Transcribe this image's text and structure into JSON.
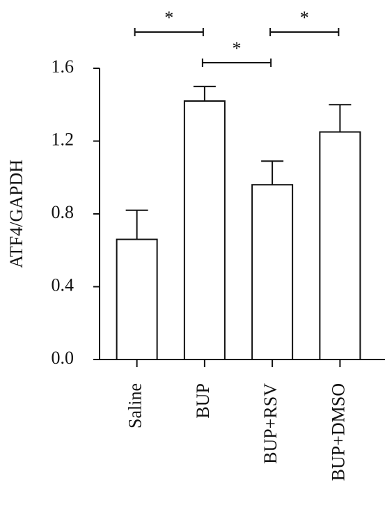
{
  "chart_data": {
    "type": "bar",
    "y_label": "ATF4/GAPDH",
    "categories": [
      "Saline",
      "BUP",
      "BUP+RSV",
      "BUP+DMSO"
    ],
    "values": [
      0.66,
      1.42,
      0.96,
      1.25
    ],
    "errors": [
      0.16,
      0.08,
      0.13,
      0.15
    ],
    "color": "#ffffff",
    "ylim": [
      0,
      1.6
    ],
    "yticks": [
      {
        "value": 0,
        "label": "0.0"
      },
      {
        "value": 0.4,
        "label": "0.4"
      },
      {
        "value": 0.8,
        "label": "0.8"
      },
      {
        "value": 1.2,
        "label": "1.2"
      },
      {
        "value": 1.6,
        "label": "1.6"
      }
    ],
    "significance": [
      {
        "from": 0,
        "to": 1,
        "label": "*"
      },
      {
        "from": 1,
        "to": 2,
        "label": "*"
      },
      {
        "from": 2,
        "to": 3,
        "label": "*"
      }
    ]
  }
}
